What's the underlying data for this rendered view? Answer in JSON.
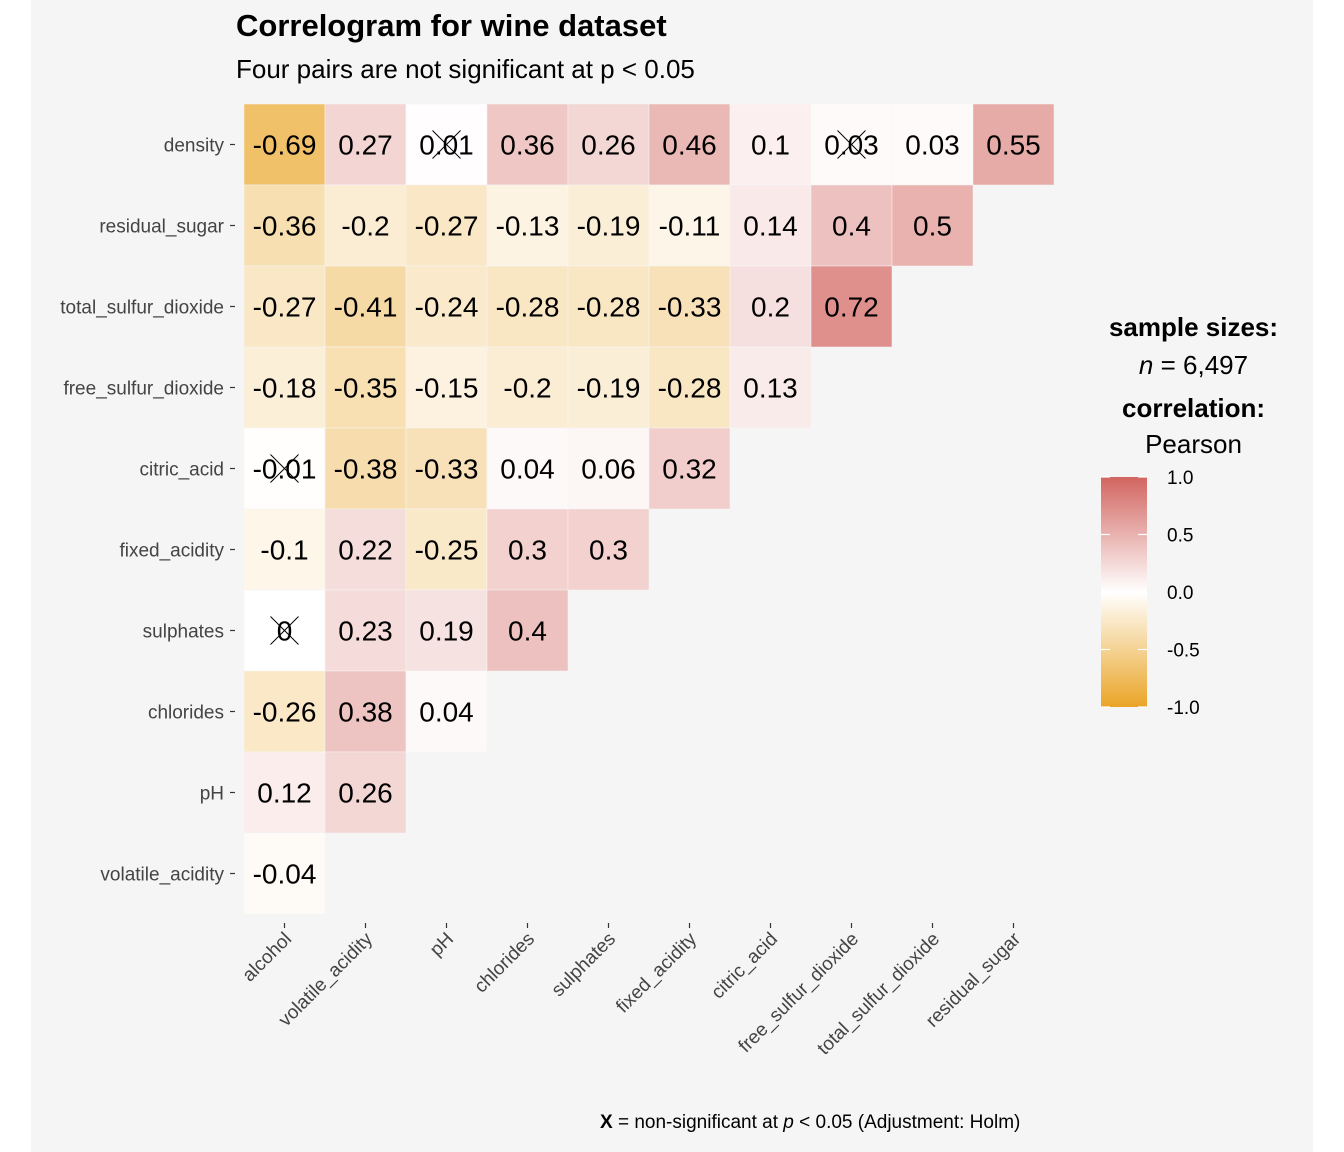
{
  "title": "Correlogram for wine dataset",
  "subtitle": "Four pairs are not significant at p < 0.05",
  "legend": {
    "sample_title": "sample sizes:",
    "n_label": "n",
    "n_value": "= 6,497",
    "corr_title": "correlation:",
    "corr_method": "Pearson",
    "ticks": [
      "1.0",
      "0.5",
      "0.0",
      "-0.5",
      "-1.0"
    ],
    "tick_values": [
      1.0,
      0.5,
      0.0,
      -0.5,
      -1.0
    ]
  },
  "caption": {
    "mark": "X",
    "text1": " = non-significant at ",
    "p": "p",
    "text2": " < 0.05 (Adjustment: Holm)"
  },
  "colors": {
    "low": "#E69F00",
    "mid": "#FFFFFF",
    "high": "#D55E00",
    "high_display": "#D2655F",
    "low_display": "#EAA527",
    "background": "#F5F5F5"
  },
  "chart_data": {
    "type": "heatmap",
    "title": "Correlogram for wine dataset",
    "subtitle": "Four pairs are not significant at p < 0.05",
    "x_labels": [
      "alcohol",
      "volatile_acidity",
      "pH",
      "chlorides",
      "sulphates",
      "fixed_acidity",
      "citric_acid",
      "free_sulfur_dioxide",
      "total_sulfur_dioxide",
      "residual_sugar"
    ],
    "y_labels": [
      "density",
      "residual_sugar",
      "total_sulfur_dioxide",
      "free_sulfur_dioxide",
      "citric_acid",
      "fixed_acidity",
      "sulphates",
      "chlorides",
      "pH",
      "volatile_acidity"
    ],
    "cells": [
      {
        "row": "density",
        "values": [
          "-0.69",
          "0.27",
          "0.01",
          "0.36",
          "0.26",
          "0.46",
          "0.1",
          "0.03",
          "0.03",
          "0.55"
        ],
        "nonsig": [
          false,
          false,
          true,
          false,
          false,
          false,
          false,
          true,
          false,
          false
        ]
      },
      {
        "row": "residual_sugar",
        "values": [
          "-0.36",
          "-0.2",
          "-0.27",
          "-0.13",
          "-0.19",
          "-0.11",
          "0.14",
          "0.4",
          "0.5"
        ],
        "nonsig": [
          false,
          false,
          false,
          false,
          false,
          false,
          false,
          false,
          false
        ]
      },
      {
        "row": "total_sulfur_dioxide",
        "values": [
          "-0.27",
          "-0.41",
          "-0.24",
          "-0.28",
          "-0.28",
          "-0.33",
          "0.2",
          "0.72"
        ],
        "nonsig": [
          false,
          false,
          false,
          false,
          false,
          false,
          false,
          false
        ]
      },
      {
        "row": "free_sulfur_dioxide",
        "values": [
          "-0.18",
          "-0.35",
          "-0.15",
          "-0.2",
          "-0.19",
          "-0.28",
          "0.13"
        ],
        "nonsig": [
          false,
          false,
          false,
          false,
          false,
          false,
          false
        ]
      },
      {
        "row": "citric_acid",
        "values": [
          "-0.01",
          "-0.38",
          "-0.33",
          "0.04",
          "0.06",
          "0.32"
        ],
        "nonsig": [
          true,
          false,
          false,
          false,
          false,
          false
        ]
      },
      {
        "row": "fixed_acidity",
        "values": [
          "-0.1",
          "0.22",
          "-0.25",
          "0.3",
          "0.3"
        ],
        "nonsig": [
          false,
          false,
          false,
          false,
          false
        ]
      },
      {
        "row": "sulphates",
        "values": [
          "0",
          "0.23",
          "0.19",
          "0.4"
        ],
        "nonsig": [
          true,
          false,
          false,
          false
        ]
      },
      {
        "row": "chlorides",
        "values": [
          "-0.26",
          "0.38",
          "0.04"
        ],
        "nonsig": [
          false,
          false,
          false
        ]
      },
      {
        "row": "pH",
        "values": [
          "0.12",
          "0.26"
        ],
        "nonsig": [
          false,
          false
        ]
      },
      {
        "row": "volatile_acidity",
        "values": [
          "-0.04"
        ],
        "nonsig": [
          false
        ]
      }
    ],
    "color_range": [
      -1.0,
      1.0
    ],
    "grid": false,
    "legend_placement": "right"
  }
}
